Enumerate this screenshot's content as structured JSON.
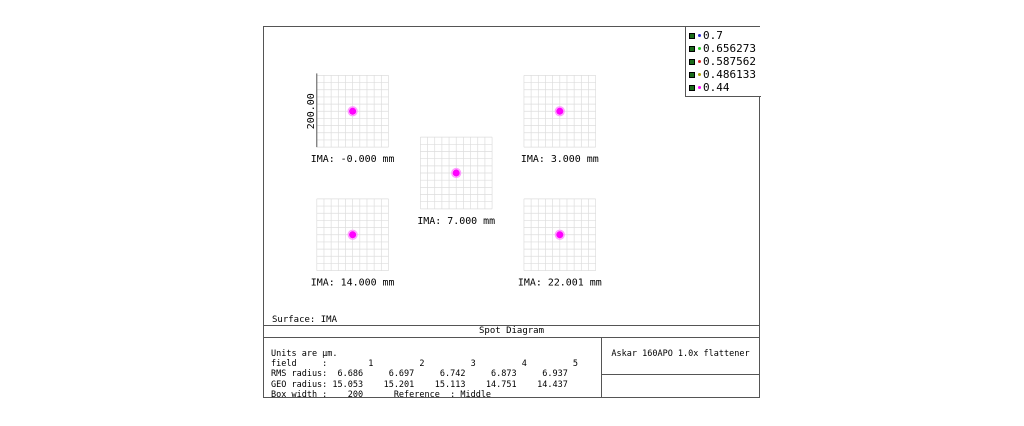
{
  "chart_data": {
    "type": "scatter",
    "diagram": "spot",
    "surface_label": "Surface: IMA",
    "title": "Spot Diagram",
    "y_axis_label": "200.00",
    "fields": [
      {
        "label": "IMA: -0.000 mm",
        "rms_radius": 6.686,
        "geo_radius": 15.053
      },
      {
        "label": "IMA: 3.000 mm",
        "rms_radius": 6.697,
        "geo_radius": 15.201
      },
      {
        "label": "IMA: 7.000 mm",
        "rms_radius": 6.742,
        "geo_radius": 15.113
      },
      {
        "label": "IMA: 14.000 mm",
        "rms_radius": 6.873,
        "geo_radius": 14.751
      },
      {
        "label": "IMA: 22.001 mm",
        "rms_radius": 6.937,
        "geo_radius": 14.437
      }
    ],
    "wavelengths": [
      {
        "name": "0.7",
        "color": "#2b2bd6"
      },
      {
        "name": "0.656273",
        "color": "#22cc22"
      },
      {
        "name": "0.587562",
        "color": "#d62222"
      },
      {
        "name": "0.486133",
        "color": "#b3a300"
      },
      {
        "name": "0.44",
        "color": "#ff00ff"
      }
    ],
    "spot_color": "#ff00ff",
    "grid": true,
    "legend_position": "top-right"
  },
  "info": {
    "units": "Units are µm.",
    "field_row": "field     :        1         2         3         4         5",
    "rms_row": "RMS radius:  6.686     6.697     6.742     6.873     6.937",
    "geo_row": "GEO radius: 15.053    15.201    15.113    14.751    14.437",
    "box_row": "Box width :    200      Reference  : Middle"
  },
  "system_name": "Askar 160APO 1.0x flattener"
}
